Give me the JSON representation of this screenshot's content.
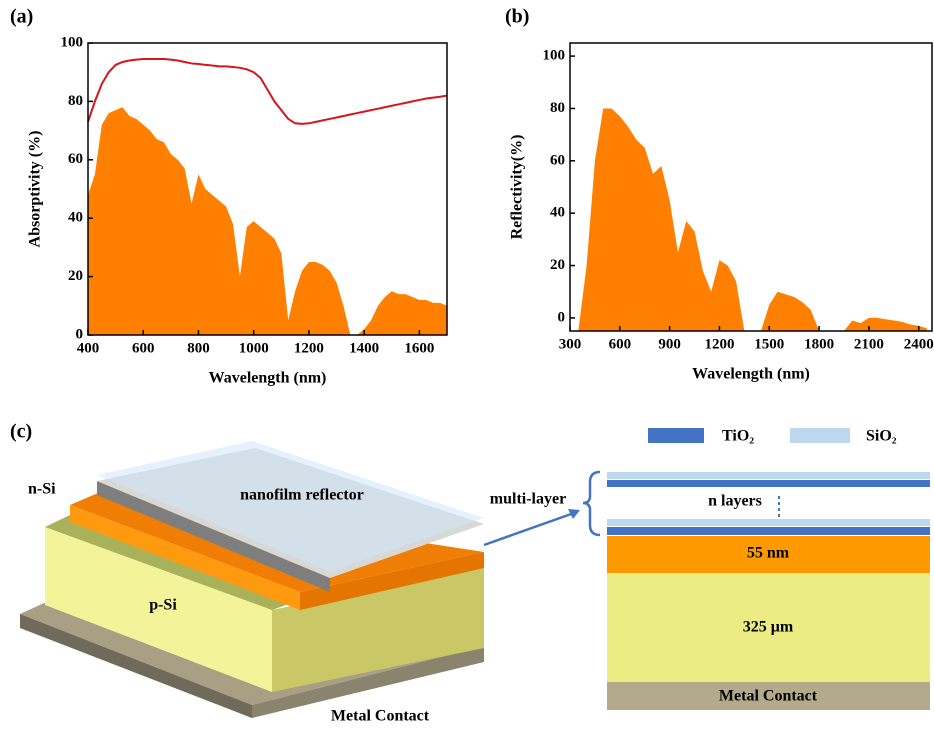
{
  "chart_data": [
    {
      "type": "area",
      "label": "(a)",
      "x_label": "Wavelength (nm)",
      "y_label": "Absorptivity (%)",
      "xlim": [
        400,
        1700
      ],
      "ylim": [
        0,
        100
      ],
      "xticks": [
        400,
        600,
        800,
        1000,
        1200,
        1400,
        1600
      ],
      "yticks": [
        0,
        20,
        40,
        60,
        80,
        100
      ],
      "x": [
        400,
        425,
        450,
        475,
        500,
        525,
        550,
        575,
        600,
        625,
        650,
        675,
        700,
        725,
        750,
        775,
        800,
        825,
        850,
        875,
        900,
        925,
        950,
        975,
        1000,
        1025,
        1050,
        1075,
        1100,
        1125,
        1150,
        1175,
        1200,
        1225,
        1250,
        1275,
        1300,
        1325,
        1350,
        1375,
        1400,
        1425,
        1450,
        1475,
        1500,
        1525,
        1550,
        1575,
        1600,
        1625,
        1650,
        1675,
        1700
      ],
      "series": [
        {
          "type": "line",
          "color": "#d7141e",
          "values": [
            73,
            80,
            86,
            90,
            92.5,
            93.5,
            94,
            94.3,
            94.5,
            94.5,
            94.5,
            94.5,
            94.3,
            94,
            93.5,
            93,
            92.8,
            92.5,
            92.3,
            92,
            92,
            91.8,
            91.5,
            91,
            90,
            88,
            84,
            80,
            77,
            74,
            72.5,
            72.3,
            72.5,
            73,
            73.5,
            74,
            74.5,
            75,
            75.5,
            76,
            76.5,
            77,
            77.5,
            78,
            78.5,
            79,
            79.5,
            80,
            80.5,
            81,
            81.3,
            81.6,
            82
          ]
        },
        {
          "type": "area",
          "color": "#ff8000",
          "values": [
            48,
            55,
            72,
            76,
            77,
            78,
            75,
            74,
            72,
            70,
            67,
            66,
            62,
            60,
            57,
            45,
            55,
            50,
            48,
            46,
            44,
            38,
            20,
            37,
            39,
            37,
            35,
            33,
            28,
            5,
            15,
            22,
            25,
            25,
            24,
            22,
            18,
            10,
            0,
            0,
            2,
            5,
            10,
            13,
            15,
            14,
            14,
            13,
            12,
            12,
            11,
            11,
            10
          ]
        }
      ]
    },
    {
      "type": "area",
      "label": "(b)",
      "x_label": "Wavelength (nm)",
      "y_label": "Reflectivity(%)",
      "xlim": [
        300,
        2480
      ],
      "ylim": [
        -5,
        105
      ],
      "xticks": [
        300,
        600,
        900,
        1200,
        1500,
        1800,
        2100,
        2400
      ],
      "yticks": [
        0,
        20,
        40,
        60,
        80,
        100
      ],
      "x": [
        300,
        350,
        400,
        450,
        500,
        550,
        600,
        650,
        700,
        750,
        800,
        850,
        900,
        950,
        1000,
        1050,
        1100,
        1150,
        1200,
        1250,
        1300,
        1350,
        1400,
        1450,
        1500,
        1550,
        1600,
        1650,
        1700,
        1750,
        1800,
        1850,
        1900,
        1950,
        2000,
        2050,
        2100,
        2150,
        2200,
        2250,
        2300,
        2350,
        2400,
        2450
      ],
      "series": [
        {
          "type": "area",
          "color": "#ff8000",
          "values": [
            -5,
            -5,
            20,
            60,
            80,
            80,
            77,
            73,
            68,
            65,
            55,
            58,
            45,
            25,
            37,
            33,
            18,
            10,
            22,
            20,
            14,
            -5,
            -5,
            -5,
            5,
            10,
            9,
            8,
            6,
            3,
            -5,
            -5,
            -5,
            -5,
            -1,
            -2,
            0,
            0,
            -0.5,
            -1,
            -1.5,
            -2.5,
            -3,
            -4
          ]
        }
      ]
    }
  ],
  "diagram": {
    "label": "(c)",
    "n_si": "n-Si",
    "reflector": "nanofilm reflector",
    "p_si": "p-Si",
    "metal_left": "Metal Contact",
    "multilayer": "multi-layer",
    "n_layers": "n layers",
    "tio2": "TiO₂",
    "sio2": "SiO₂",
    "layer_55": "55 nm",
    "layer_325": "325 μm",
    "metal_right": "Metal Contact"
  }
}
